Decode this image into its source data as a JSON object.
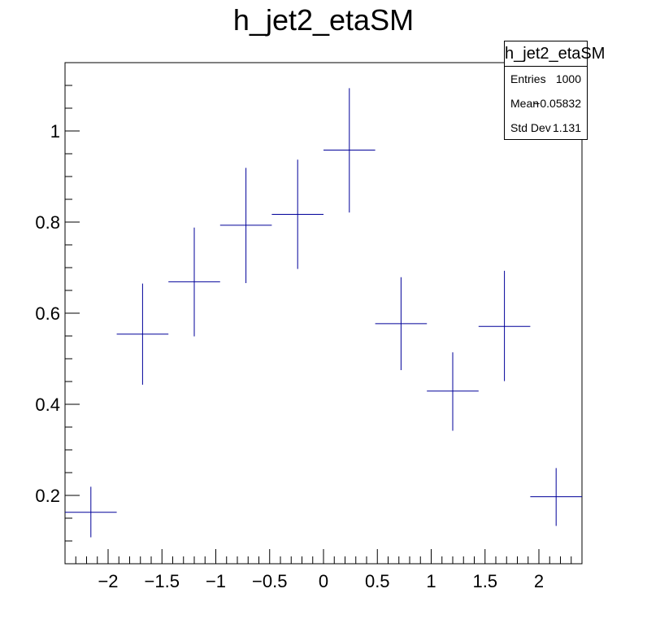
{
  "chart_data": {
    "type": "scatter",
    "title": "h_jet2_etaSM",
    "xlabel": "",
    "ylabel": "",
    "xlim": [
      -2.4,
      2.4
    ],
    "ylim": [
      0.05,
      1.15
    ],
    "xticks": [
      -2,
      -1.5,
      -1,
      -0.5,
      0,
      0.5,
      1,
      1.5,
      2
    ],
    "xtick_labels": [
      "−2",
      "−1.5",
      "−1",
      "−0.5",
      "0",
      "0.5",
      "1",
      "1.5",
      "2"
    ],
    "yticks": [
      0.2,
      0.4,
      0.6,
      0.8,
      1
    ],
    "ytick_labels": [
      "0.2",
      "0.4",
      "0.6",
      "0.8",
      "1"
    ],
    "series": [
      {
        "color": "#000099",
        "points": [
          {
            "x": -2.16,
            "xerr": 0.24,
            "y": 0.163,
            "ylo": 0.108,
            "yhi": 0.219
          },
          {
            "x": -1.68,
            "xerr": 0.24,
            "y": 0.554,
            "ylo": 0.443,
            "yhi": 0.665
          },
          {
            "x": -1.2,
            "xerr": 0.24,
            "y": 0.669,
            "ylo": 0.549,
            "yhi": 0.788
          },
          {
            "x": -0.72,
            "xerr": 0.24,
            "y": 0.793,
            "ylo": 0.666,
            "yhi": 0.919
          },
          {
            "x": -0.24,
            "xerr": 0.24,
            "y": 0.817,
            "ylo": 0.697,
            "yhi": 0.937
          },
          {
            "x": 0.24,
            "xerr": 0.24,
            "y": 0.958,
            "ylo": 0.821,
            "yhi": 1.094
          },
          {
            "x": 0.72,
            "xerr": 0.24,
            "y": 0.577,
            "ylo": 0.475,
            "yhi": 0.679
          },
          {
            "x": 1.2,
            "xerr": 0.24,
            "y": 0.429,
            "ylo": 0.342,
            "yhi": 0.514
          },
          {
            "x": 1.68,
            "xerr": 0.24,
            "y": 0.571,
            "ylo": 0.451,
            "yhi": 0.693
          },
          {
            "x": 2.16,
            "xerr": 0.24,
            "y": 0.197,
            "ylo": 0.133,
            "yhi": 0.26
          }
        ]
      }
    ],
    "legend": "none",
    "grid": false
  },
  "stats": {
    "title": "h_jet2_etaSM",
    "entries_label": "Entries",
    "entries_value": "1000",
    "mean_label": "Mean",
    "mean_value": "−0.05832",
    "stddev_label": "Std Dev",
    "stddev_value": "1.131"
  }
}
